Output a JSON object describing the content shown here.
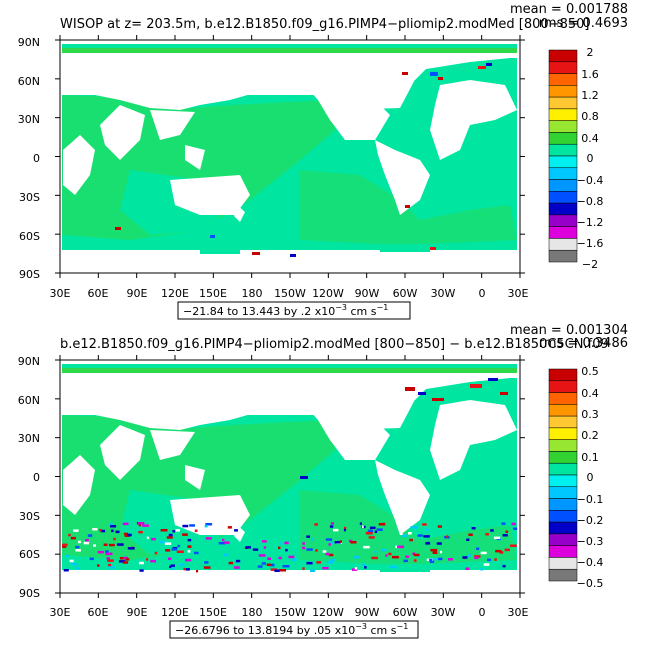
{
  "panels": [
    {
      "title": "WISOP at z= 203.5m, b.e12.B1850.f09_g16.PIMP4−pliomip2.modMed [800−850]",
      "mean": "mean = 0.001788",
      "rms": "rms = 0.4693",
      "range_label": "−21.84 to 13.443 by .2 x10",
      "range_exp": "−3",
      "range_units": " cm s",
      "range_units_exp": "−1",
      "colorbar_ticks": [
        "2",
        "1.6",
        "1.2",
        "0.8",
        "0.4",
        "0",
        "−0.4",
        "−0.8",
        "−1.2",
        "−1.6",
        "−2"
      ]
    },
    {
      "title": "b.e12.B1850.f09_g16.PIMP4−pliomip2.modMed [800−850] − b.e12.B1850C5CN.f09",
      "mean": "mean = 0.001304",
      "rms": "rms = 0.3486",
      "range_label": "−26.6796 to 13.8194 by .05 x10",
      "range_exp": "−3",
      "range_units": " cm s",
      "range_units_exp": "−1",
      "colorbar_ticks": [
        "0.5",
        "0.4",
        "0.3",
        "0.2",
        "0.1",
        "0",
        "−0.1",
        "−0.2",
        "−0.3",
        "−0.4",
        "−0.5"
      ]
    }
  ],
  "lat_labels": [
    "90N",
    "60N",
    "30N",
    "0",
    "30S",
    "60S",
    "90S"
  ],
  "lon_labels": [
    "30E",
    "60E",
    "90E",
    "120E",
    "150E",
    "180",
    "150W",
    "120W",
    "90W",
    "60W",
    "30W",
    "0",
    "30E"
  ],
  "colorbar_colors": [
    "#c80000",
    "#e61414",
    "#ff6400",
    "#ff9600",
    "#ffc832",
    "#fff000",
    "#96e632",
    "#32d232",
    "#00e6a0",
    "#00f0f0",
    "#00c8ff",
    "#0096ff",
    "#0050ff",
    "#0000c8",
    "#9600c8",
    "#dc00dc",
    "#e6e6e6",
    "#787878"
  ]
}
